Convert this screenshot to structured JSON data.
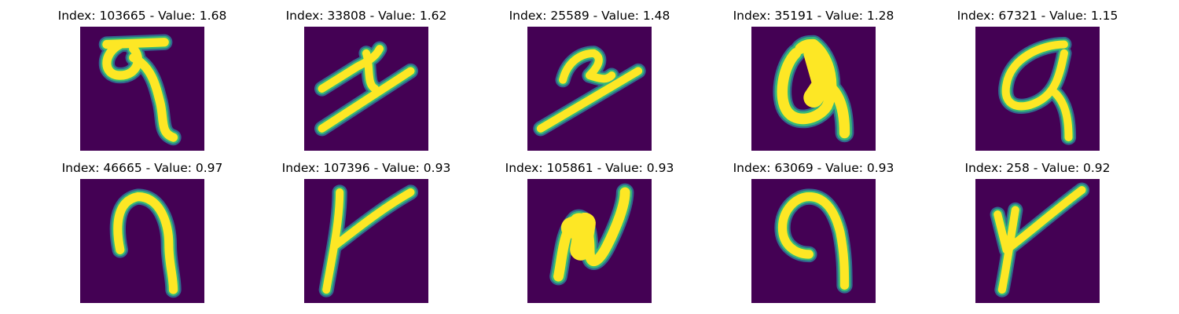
{
  "colors": {
    "background": "#440154",
    "stroke_core": "#fde725",
    "stroke_mid": "#35b779",
    "stroke_edge": "#31688e"
  },
  "panels": [
    {
      "title": "Index: 103665 - Value: 1.68",
      "glyph": "curl-loop-descender"
    },
    {
      "title": "Index: 33808 - Value: 1.62",
      "glyph": "diagonal-z"
    },
    {
      "title": "Index: 25589 - Value: 1.48",
      "glyph": "diagonal-z"
    },
    {
      "title": "Index: 35191 - Value: 1.28",
      "glyph": "loop-a"
    },
    {
      "title": "Index: 67321 - Value: 1.15",
      "glyph": "loop-a"
    },
    {
      "title": "Index: 46665 - Value: 0.97",
      "glyph": "hook-seven"
    },
    {
      "title": "Index: 107396 - Value: 0.93",
      "glyph": "y-shape"
    },
    {
      "title": "Index: 105861 - Value: 0.93",
      "glyph": "n-zigzag"
    },
    {
      "title": "Index: 63069 - Value: 0.93",
      "glyph": "hook-nine"
    },
    {
      "title": "Index: 258 - Value: 0.92",
      "glyph": "y-shape"
    }
  ]
}
